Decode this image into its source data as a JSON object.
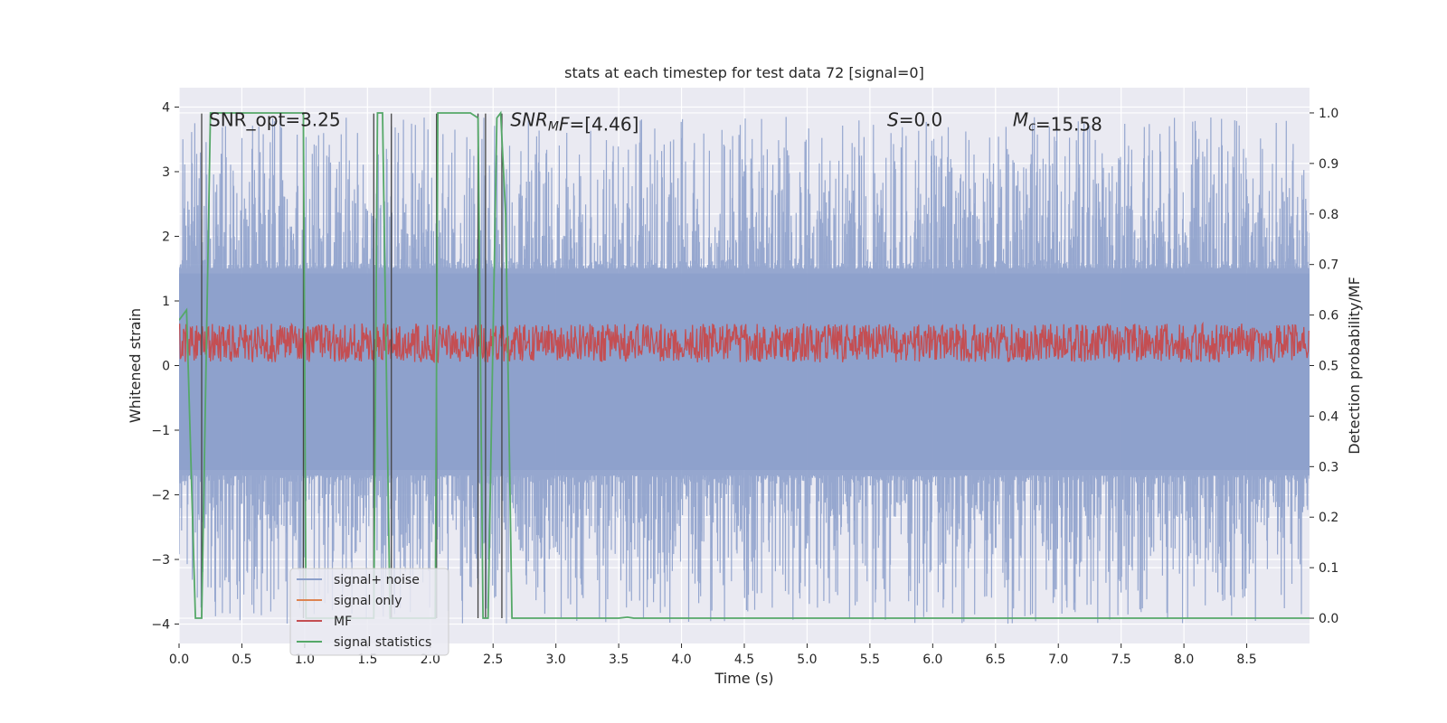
{
  "chart_data": {
    "type": "line",
    "title": "stats at each timestep for test data 72 [signal=0]",
    "xlabel": "Time (s)",
    "ylabel": "Whitened strain",
    "y2label": "Detection probability/MF",
    "xlim": [
      0.0,
      9.0
    ],
    "ylim": [
      -4.3,
      4.3
    ],
    "y2lim": [
      -0.05,
      1.05
    ],
    "x_ticks": [
      "0.0",
      "0.5",
      "1.0",
      "1.5",
      "2.0",
      "2.5",
      "3.0",
      "3.5",
      "4.0",
      "4.5",
      "5.0",
      "5.5",
      "6.0",
      "6.5",
      "7.0",
      "7.5",
      "8.0",
      "8.5"
    ],
    "y_ticks": [
      "4",
      "3",
      "2",
      "1",
      "0",
      "−1",
      "−2",
      "−3",
      "−4"
    ],
    "y2_ticks": [
      "1.0",
      "0.9",
      "0.8",
      "0.7",
      "0.6",
      "0.5",
      "0.4",
      "0.3",
      "0.2",
      "0.1",
      "0.0"
    ],
    "grid": true,
    "legend_placement": "lower-left",
    "colors": {
      "background": "#eaeaf2",
      "noise": "#8da0cb",
      "signal_only": "#dd8452",
      "mf": "#c44e52",
      "stats": "#55a868",
      "vlines": "#444444"
    },
    "legend": [
      {
        "label": "signal+ noise",
        "color": "#8da0cb"
      },
      {
        "label": "signal only",
        "color": "#dd8452"
      },
      {
        "label": "MF",
        "color": "#c44e52"
      },
      {
        "label": "signal statistics",
        "color": "#55a868"
      }
    ],
    "annotations": [
      {
        "parts": [
          {
            "text": "SNR_opt=3.25"
          }
        ],
        "x": 0.18,
        "y": 3.9
      },
      {
        "parts": [
          {
            "text": "SNR",
            "italic": true
          },
          {
            "text": "M",
            "italic": true,
            "sub": true
          },
          {
            "text": "F",
            "italic": true
          },
          {
            "text": "=[4.46]"
          }
        ],
        "x": 2.58,
        "y": 3.9
      },
      {
        "parts": [
          {
            "text": "S",
            "italic": true
          },
          {
            "text": "=0.0"
          }
        ],
        "x": 5.58,
        "y": 3.9
      },
      {
        "parts": [
          {
            "text": "M",
            "italic": true
          },
          {
            "text": "c",
            "italic": true,
            "sub": true
          },
          {
            "text": "=15.58"
          }
        ],
        "x": 6.58,
        "y": 3.9
      }
    ],
    "series_noise": {
      "name": "signal+ noise",
      "description_free": true,
      "x_range": [
        0.0,
        9.0
      ],
      "n_points": 1800,
      "upper_base": 1.5,
      "upper_extreme": 3.85,
      "lower_base": -1.7,
      "lower_extreme": -4.0
    },
    "series_mf": {
      "name": "MF",
      "x_range": [
        0.0,
        9.0
      ],
      "n_points": 1800,
      "band_low": 0.0,
      "band_high": 0.7,
      "peak": 1.0
    },
    "series_stats": {
      "name": "signal statistics",
      "axis": "right",
      "x": [
        0.0,
        0.06,
        0.13,
        0.18,
        0.25,
        0.26,
        0.97,
        0.99,
        1.01,
        1.55,
        1.58,
        1.62,
        1.68,
        1.7,
        1.79,
        2.04,
        2.06,
        2.12,
        2.32,
        2.38,
        2.42,
        2.46,
        2.53,
        2.56,
        2.6,
        2.65,
        2.68,
        3.5,
        3.57,
        3.62,
        9.0
      ],
      "y": [
        0.59,
        0.61,
        0.0,
        0.0,
        1.0,
        1.0,
        1.0,
        1.0,
        0.0,
        0.0,
        1.0,
        1.0,
        0.0,
        0.0,
        0.0,
        0.0,
        1.0,
        1.0,
        1.0,
        0.99,
        0.0,
        0.0,
        0.99,
        1.0,
        0.8,
        0.0,
        0.0,
        0.0,
        0.002,
        0.0,
        0.0
      ]
    },
    "vlines": [
      0.18,
      0.99,
      1.55,
      1.69,
      2.05,
      2.38,
      2.44,
      2.57
    ],
    "vlines_top": 3.9
  }
}
